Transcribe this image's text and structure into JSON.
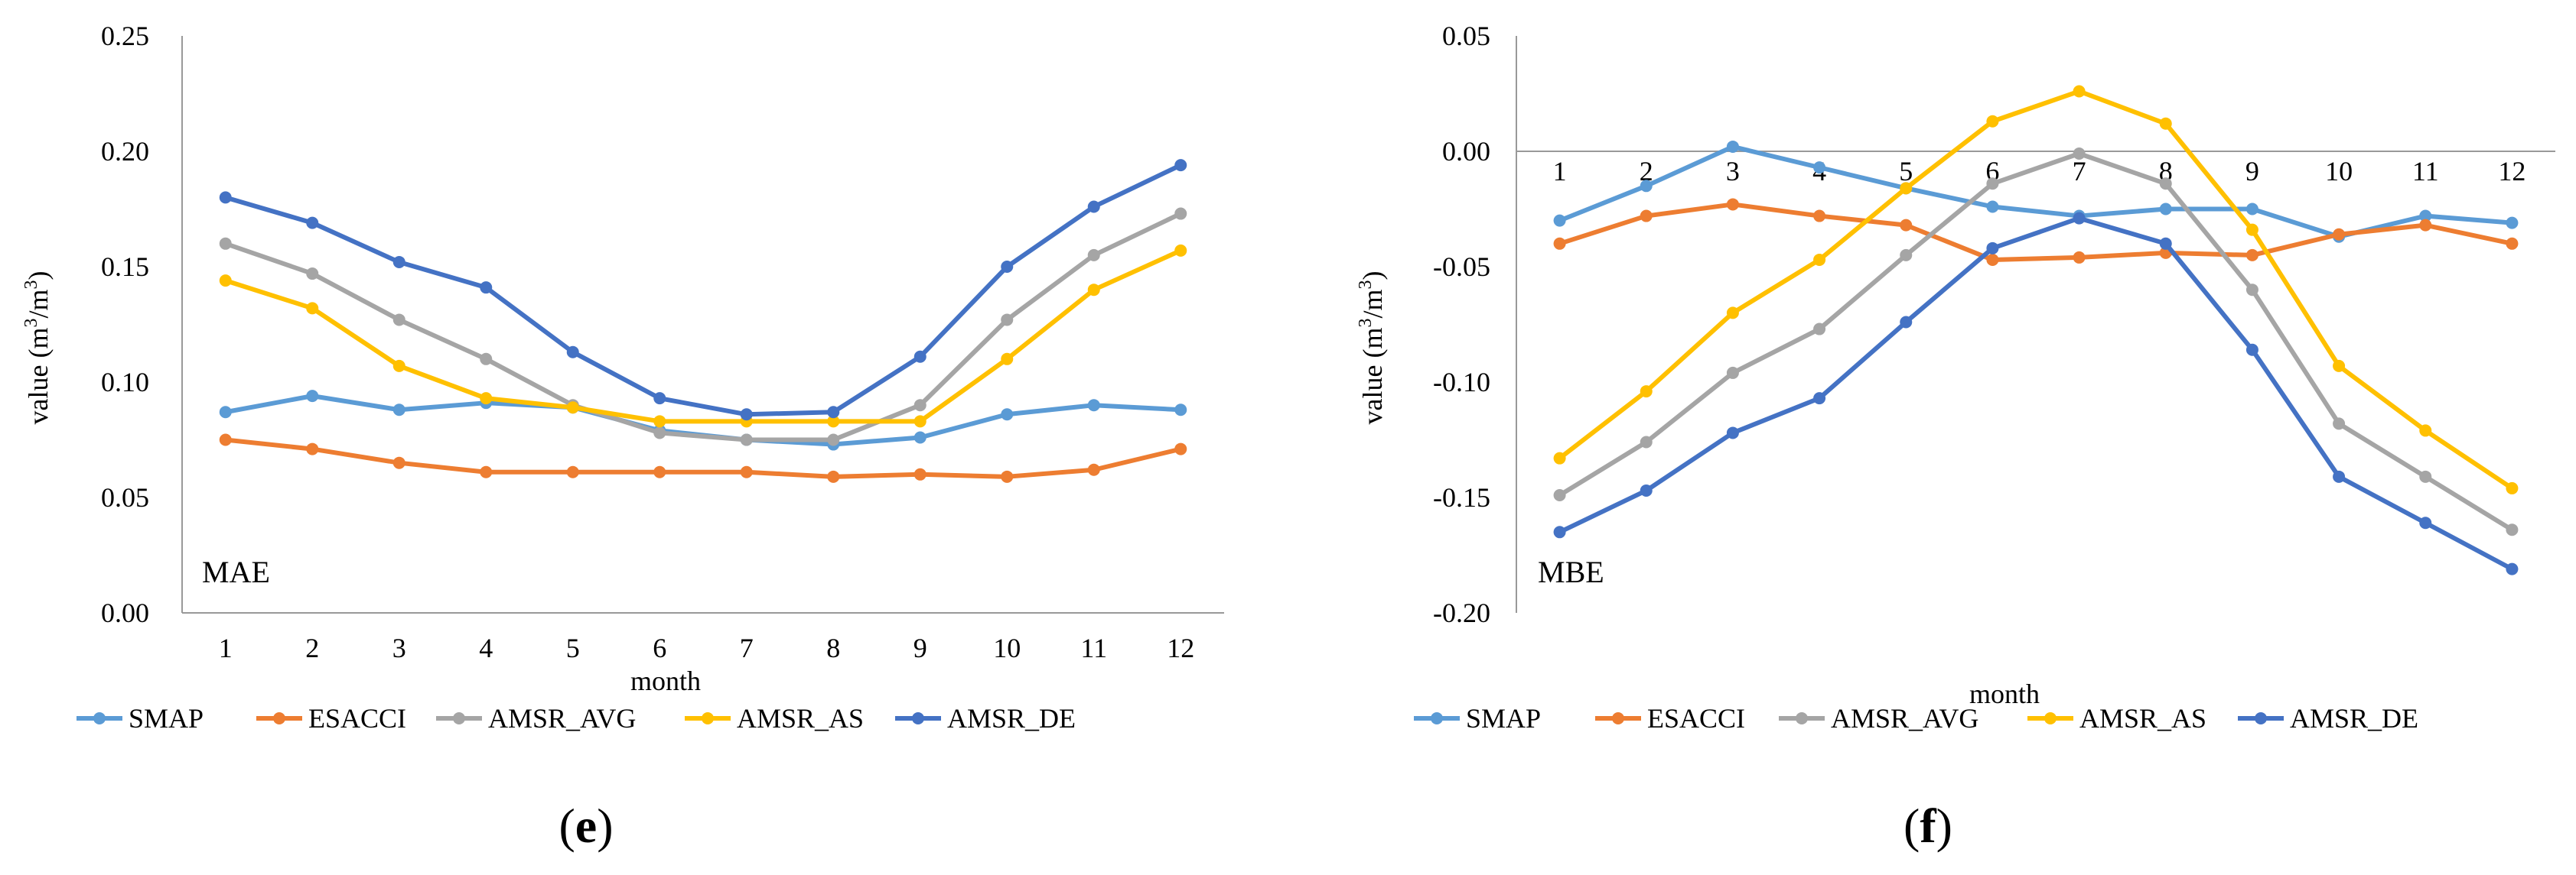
{
  "chart_data": [
    {
      "type": "line",
      "panel_label": "(e)",
      "panel_letter": "e",
      "inner_label": "MAE",
      "xlabel": "month",
      "ylabel_main": "value (m",
      "ylabel_sup1": "3",
      "ylabel_mid": "/m",
      "ylabel_sup2": "3",
      "ylabel_end": ")",
      "categories": [
        "1",
        "2",
        "3",
        "4",
        "5",
        "6",
        "7",
        "8",
        "9",
        "10",
        "11",
        "12"
      ],
      "ylim": [
        0,
        0.25
      ],
      "yticks": [
        "0.00",
        "0.05",
        "0.10",
        "0.15",
        "0.20",
        "0.25"
      ],
      "ytick_values": [
        0,
        0.05,
        0.1,
        0.15,
        0.2,
        0.25
      ],
      "legend_position": "bottom",
      "series": [
        {
          "name": "SMAP",
          "color": "#5B9BD5",
          "values": [
            0.087,
            0.094,
            0.088,
            0.091,
            0.089,
            0.079,
            0.075,
            0.073,
            0.076,
            0.086,
            0.09,
            0.088
          ]
        },
        {
          "name": "ESACCI",
          "color": "#ED7D31",
          "values": [
            0.075,
            0.071,
            0.065,
            0.061,
            0.061,
            0.061,
            0.061,
            0.059,
            0.06,
            0.059,
            0.062,
            0.071
          ]
        },
        {
          "name": "AMSR_AVG",
          "color": "#A5A5A5",
          "values": [
            0.16,
            0.147,
            0.127,
            0.11,
            0.09,
            0.078,
            0.075,
            0.075,
            0.09,
            0.127,
            0.155,
            0.173
          ]
        },
        {
          "name": "AMSR_AS",
          "color": "#FFC000",
          "values": [
            0.144,
            0.132,
            0.107,
            0.093,
            0.089,
            0.083,
            0.083,
            0.083,
            0.083,
            0.11,
            0.14,
            0.157
          ]
        },
        {
          "name": "AMSR_DE",
          "color": "#4472C4",
          "values": [
            0.18,
            0.169,
            0.152,
            0.141,
            0.113,
            0.093,
            0.086,
            0.087,
            0.111,
            0.15,
            0.176,
            0.194
          ]
        }
      ]
    },
    {
      "type": "line",
      "panel_label": "(f)",
      "panel_letter": "f",
      "inner_label": "MBE",
      "xlabel": "month",
      "ylabel_main": "value (m",
      "ylabel_sup1": "3",
      "ylabel_mid": "/m",
      "ylabel_sup2": "3",
      "ylabel_end": ")",
      "categories": [
        "1",
        "2",
        "3",
        "4",
        "5",
        "6",
        "7",
        "8",
        "9",
        "10",
        "11",
        "12"
      ],
      "ylim": [
        -0.2,
        0.05
      ],
      "yticks": [
        "-0.20",
        "-0.15",
        "-0.10",
        "-0.05",
        "0.00",
        "0.05"
      ],
      "ytick_values": [
        -0.2,
        -0.15,
        -0.1,
        -0.05,
        0.0,
        0.05
      ],
      "legend_position": "bottom",
      "series": [
        {
          "name": "SMAP",
          "color": "#5B9BD5",
          "values": [
            -0.03,
            -0.015,
            0.002,
            -0.007,
            -0.016,
            -0.024,
            -0.028,
            -0.025,
            -0.025,
            -0.037,
            -0.028,
            -0.031
          ]
        },
        {
          "name": "ESACCI",
          "color": "#ED7D31",
          "values": [
            -0.04,
            -0.028,
            -0.023,
            -0.028,
            -0.032,
            -0.047,
            -0.046,
            -0.044,
            -0.045,
            -0.036,
            -0.032,
            -0.04
          ]
        },
        {
          "name": "AMSR_AVG",
          "color": "#A5A5A5",
          "values": [
            -0.149,
            -0.126,
            -0.096,
            -0.077,
            -0.045,
            -0.014,
            -0.001,
            -0.014,
            -0.06,
            -0.118,
            -0.141,
            -0.164
          ]
        },
        {
          "name": "AMSR_AS",
          "color": "#FFC000",
          "values": [
            -0.133,
            -0.104,
            -0.07,
            -0.047,
            -0.016,
            0.013,
            0.026,
            0.012,
            -0.034,
            -0.093,
            -0.121,
            -0.146
          ]
        },
        {
          "name": "AMSR_DE",
          "color": "#4472C4",
          "values": [
            -0.165,
            -0.147,
            -0.122,
            -0.107,
            -0.074,
            -0.042,
            -0.029,
            -0.04,
            -0.086,
            -0.141,
            -0.161,
            -0.181
          ]
        }
      ]
    }
  ]
}
